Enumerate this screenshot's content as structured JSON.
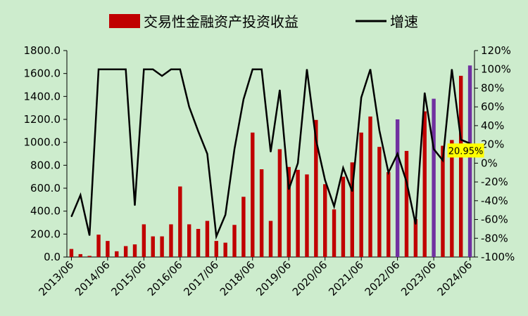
{
  "chart_data": {
    "type": "bar",
    "legend": {
      "position": "top",
      "bar_series_label": "交易性金融资产投资收益",
      "line_series_label": "增速"
    },
    "colors": {
      "bar": "#c00000",
      "bar_highlight": "#7030a0",
      "line": "#000000",
      "callout_bg": "#ffff00"
    },
    "left_axis": {
      "ticks": [
        "0.0",
        "200.0",
        "400.0",
        "600.0",
        "800.0",
        "1000.0",
        "1200.0",
        "1400.0",
        "1600.0",
        "1800.0"
      ],
      "ylim": [
        0,
        1800
      ]
    },
    "right_axis": {
      "ticks": [
        "-100%",
        "-80%",
        "-60%",
        "-40%",
        "-20%",
        "0%",
        "20%",
        "40%",
        "60%",
        "80%",
        "100%",
        "120%"
      ],
      "ylim": [
        -100,
        120
      ]
    },
    "x_ticks": [
      "2013/06",
      "2014/06",
      "2015/06",
      "2016/06",
      "2017/06",
      "2018/06",
      "2019/06",
      "2020/06",
      "2021/06",
      "2022/06",
      "2023/06",
      "2024/06"
    ],
    "series": [
      {
        "name": "交易性金融资产投资收益",
        "kind": "bar",
        "values": [
          70,
          25,
          10,
          195,
          140,
          50,
          95,
          110,
          285,
          180,
          180,
          285,
          615,
          285,
          245,
          315,
          140,
          125,
          280,
          525,
          1085,
          765,
          315,
          940,
          785,
          760,
          720,
          1195,
          635,
          415,
          700,
          825,
          1085,
          1225,
          960,
          740,
          1200,
          925,
          330,
          1270,
          1380,
          970,
          1020,
          1580,
          1670
        ],
        "highlight_indices": [
          36,
          40,
          44
        ]
      },
      {
        "name": "增速",
        "kind": "line",
        "values": [
          -57,
          -34,
          -77,
          100,
          100,
          100,
          100,
          -45,
          100,
          100,
          93,
          100,
          100,
          60,
          34,
          10,
          -78,
          -55,
          15,
          68,
          100,
          100,
          12,
          78,
          -28,
          0,
          100,
          25,
          -18,
          -46,
          -5,
          -30,
          70,
          100,
          35,
          -10,
          10,
          -20,
          -65,
          75,
          15,
          3,
          100,
          25,
          21
        ]
      }
    ],
    "callout": {
      "text": "20.95%",
      "index": 44
    }
  }
}
